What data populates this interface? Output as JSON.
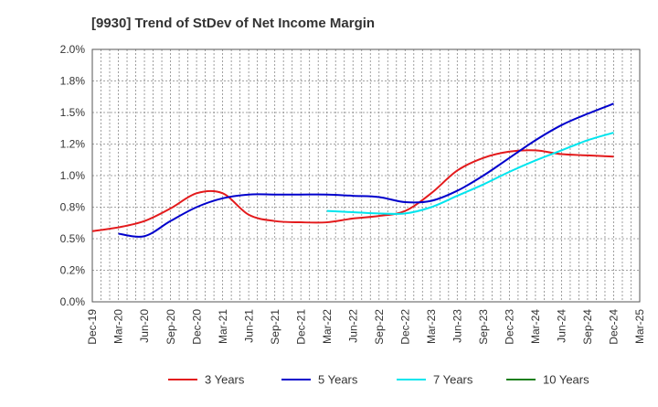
{
  "chart_data": {
    "type": "line",
    "title": "[9930]  Trend of StDev of Net Income Margin",
    "x_categories": [
      "Dec-19",
      "Mar-20",
      "Jun-20",
      "Sep-20",
      "Dec-20",
      "Mar-21",
      "Jun-21",
      "Sep-21",
      "Dec-21",
      "Mar-22",
      "Jun-22",
      "Sep-22",
      "Dec-22",
      "Mar-23",
      "Jun-23",
      "Sep-23",
      "Dec-23",
      "Mar-24",
      "Jun-24",
      "Sep-24",
      "Dec-24",
      "Mar-25"
    ],
    "y_ticks": [
      "0.0%",
      "0.2%",
      "0.5%",
      "0.8%",
      "1.0%",
      "1.2%",
      "1.5%",
      "1.8%",
      "2.0%"
    ],
    "ylim": [
      0,
      2.0
    ],
    "grid": true,
    "legend_position": "bottom",
    "series": [
      {
        "name": "3 Years",
        "color": "#e31a1c",
        "values": [
          0.56,
          0.59,
          0.64,
          0.74,
          0.86,
          0.86,
          0.69,
          0.64,
          0.63,
          0.63,
          0.66,
          0.68,
          0.72,
          0.86,
          1.04,
          1.14,
          1.19,
          1.2,
          1.17,
          1.16,
          1.15,
          null
        ]
      },
      {
        "name": "5 Years",
        "color": "#0000cc",
        "values": [
          null,
          0.54,
          0.52,
          0.64,
          0.75,
          0.82,
          0.85,
          0.85,
          0.85,
          0.85,
          0.84,
          0.83,
          0.79,
          0.8,
          0.88,
          1.0,
          1.14,
          1.28,
          1.4,
          1.49,
          1.57,
          null
        ]
      },
      {
        "name": "7 Years",
        "color": "#00e5ee",
        "values": [
          null,
          null,
          null,
          null,
          null,
          null,
          null,
          null,
          null,
          0.72,
          0.71,
          0.7,
          0.7,
          0.75,
          0.84,
          0.93,
          1.03,
          1.12,
          1.2,
          1.28,
          1.34,
          null
        ]
      },
      {
        "name": "10 Years",
        "color": "#1a7f1a",
        "values": [
          null,
          null,
          null,
          null,
          null,
          null,
          null,
          null,
          null,
          null,
          null,
          null,
          null,
          null,
          null,
          null,
          null,
          null,
          null,
          null,
          null,
          null
        ]
      }
    ]
  }
}
